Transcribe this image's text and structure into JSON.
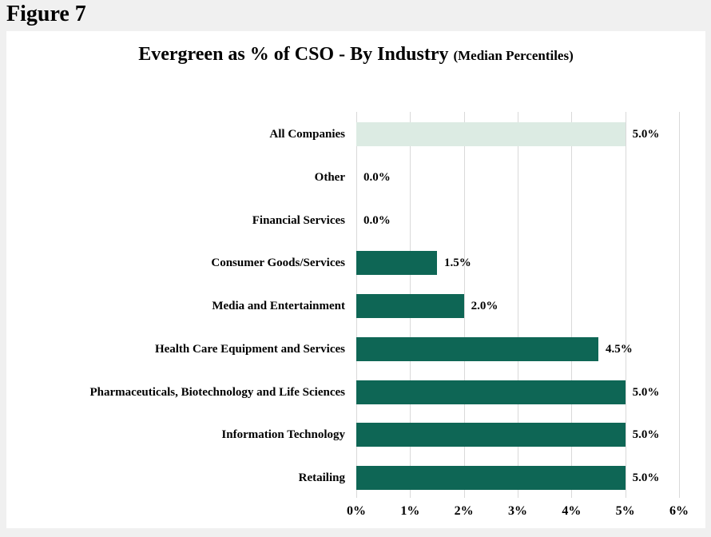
{
  "figure_label": "Figure 7",
  "title": "Evergreen as % of CSO - By Industry",
  "title_suffix": "(Median Percentiles)",
  "chart_data": {
    "type": "bar",
    "orientation": "horizontal",
    "title": "Evergreen as % of CSO - By Industry (Median Percentiles)",
    "categories": [
      "All Companies",
      "Other",
      "Financial Services",
      "Consumer Goods/Services",
      "Media and Entertainment",
      "Health Care Equipment and Services",
      "Pharmaceuticals, Biotechnology and Life Sciences",
      "Information Technology",
      "Retailing"
    ],
    "values": [
      5.0,
      0.0,
      0.0,
      1.5,
      2.0,
      4.5,
      5.0,
      5.0,
      5.0
    ],
    "value_labels": [
      "5.0%",
      "0.0%",
      "0.0%",
      "1.5%",
      "2.0%",
      "4.5%",
      "5.0%",
      "5.0%",
      "5.0%"
    ],
    "bar_colors": [
      "#dcebe3",
      "#0e6655",
      "#0e6655",
      "#0e6655",
      "#0e6655",
      "#0e6655",
      "#0e6655",
      "#0e6655",
      "#0e6655"
    ],
    "x_ticks": [
      "0%",
      "1%",
      "2%",
      "3%",
      "4%",
      "5%",
      "6%"
    ],
    "xlim": [
      0,
      6
    ],
    "grid": "vertical",
    "legend": "none",
    "colors": {
      "default_bar": "#0e6655",
      "highlight_bar": "#dcebe3",
      "gridline": "#d9d9d9",
      "panel_background": "#ffffff",
      "page_background": "#f0f0f0",
      "text": "#000000"
    }
  }
}
